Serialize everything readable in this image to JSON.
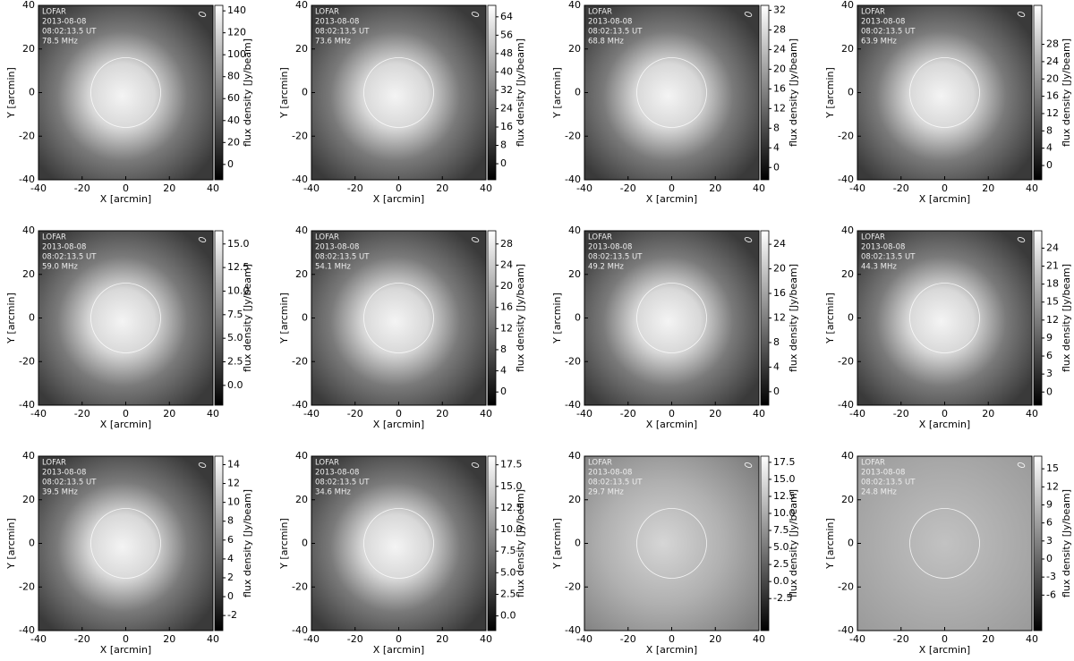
{
  "chart_data": [
    {
      "type": "image",
      "annotations": [
        "LOFAR",
        "2013-08-08",
        "08:02:13.5 UT",
        "78.5 MHz"
      ],
      "xlabel": "X [arcmin]",
      "ylabel": "Y [arcmin]",
      "xlim": [
        -40,
        40
      ],
      "ylim": [
        -40,
        40
      ],
      "xticks": [
        -40,
        -20,
        0,
        20,
        40
      ],
      "yticks": [
        -40,
        -20,
        0,
        20,
        40
      ],
      "colorbar": {
        "label": "flux density [Jy/beam]",
        "lim": [
          -14,
          145
        ],
        "ticks": [
          0,
          20,
          40,
          60,
          80,
          100,
          120,
          140
        ]
      }
    },
    {
      "type": "image",
      "annotations": [
        "LOFAR",
        "2013-08-08",
        "08:02:13.5 UT",
        "73.6 MHz"
      ],
      "xlabel": "X [arcmin]",
      "ylabel": "Y [arcmin]",
      "xlim": [
        -40,
        40
      ],
      "ylim": [
        -40,
        40
      ],
      "xticks": [
        -40,
        -20,
        0,
        20,
        40
      ],
      "yticks": [
        -40,
        -20,
        0,
        20,
        40
      ],
      "colorbar": {
        "label": "flux density [Jy/beam]",
        "lim": [
          -7,
          69
        ],
        "ticks": [
          0,
          8,
          16,
          24,
          32,
          40,
          48,
          56,
          64
        ]
      }
    },
    {
      "type": "image",
      "annotations": [
        "LOFAR",
        "2013-08-08",
        "08:02:13.5 UT",
        "68.8 MHz"
      ],
      "xlabel": "X [arcmin]",
      "ylabel": "Y [arcmin]",
      "xlim": [
        -40,
        40
      ],
      "ylim": [
        -40,
        40
      ],
      "xticks": [
        -40,
        -20,
        0,
        20,
        40
      ],
      "yticks": [
        -40,
        -20,
        0,
        20,
        40
      ],
      "colorbar": {
        "label": "flux density [Jy/beam]",
        "lim": [
          -2.5,
          33
        ],
        "ticks": [
          0,
          4,
          8,
          12,
          16,
          20,
          24,
          28,
          32
        ]
      }
    },
    {
      "type": "image",
      "annotations": [
        "LOFAR",
        "2013-08-08",
        "08:02:13.5 UT",
        "63.9 MHz"
      ],
      "xlabel": "X [arcmin]",
      "ylabel": "Y [arcmin]",
      "xlim": [
        -40,
        40
      ],
      "ylim": [
        -40,
        40
      ],
      "xticks": [
        -40,
        -20,
        0,
        20,
        40
      ],
      "yticks": [
        -40,
        -20,
        0,
        20,
        40
      ],
      "colorbar": {
        "label": "flux density [Jy/beam]",
        "lim": [
          -3.3,
          37
        ],
        "ticks": [
          0,
          4,
          8,
          12,
          16,
          20,
          24,
          28
        ]
      }
    },
    {
      "type": "image",
      "annotations": [
        "LOFAR",
        "2013-08-08",
        "08:02:13.5 UT",
        "59.0 MHz"
      ],
      "xlabel": "X [arcmin]",
      "ylabel": "Y [arcmin]",
      "xlim": [
        -40,
        40
      ],
      "ylim": [
        -40,
        40
      ],
      "xticks": [
        -40,
        -20,
        0,
        20,
        40
      ],
      "yticks": [
        -40,
        -20,
        0,
        20,
        40
      ],
      "colorbar": {
        "label": "flux density [Jy/beam]",
        "lim": [
          -2.1,
          16.4
        ],
        "ticks": [
          {
            "value": 0,
            "label": "0.0"
          },
          2.5,
          {
            "value": 5,
            "label": "5.0"
          },
          7.5,
          {
            "value": 10,
            "label": "10.0"
          },
          12.5,
          {
            "value": 15,
            "label": "15.0"
          }
        ]
      }
    },
    {
      "type": "image",
      "annotations": [
        "LOFAR",
        "2013-08-08",
        "08:02:13.5 UT",
        "54.1 MHz"
      ],
      "xlabel": "X [arcmin]",
      "ylabel": "Y [arcmin]",
      "xlim": [
        -40,
        40
      ],
      "ylim": [
        -40,
        40
      ],
      "xticks": [
        -40,
        -20,
        0,
        20,
        40
      ],
      "yticks": [
        -40,
        -20,
        0,
        20,
        40
      ],
      "colorbar": {
        "label": "flux density [Jy/beam]",
        "lim": [
          -2.5,
          30.5
        ],
        "ticks": [
          0,
          4,
          8,
          12,
          16,
          20,
          24,
          28
        ]
      }
    },
    {
      "type": "image",
      "annotations": [
        "LOFAR",
        "2013-08-08",
        "08:02:13.5 UT",
        "49.2 MHz"
      ],
      "xlabel": "X [arcmin]",
      "ylabel": "Y [arcmin]",
      "xlim": [
        -40,
        40
      ],
      "ylim": [
        -40,
        40
      ],
      "xticks": [
        -40,
        -20,
        0,
        20,
        40
      ],
      "yticks": [
        -40,
        -20,
        0,
        20,
        40
      ],
      "colorbar": {
        "label": "flux density [Jy/beam]",
        "lim": [
          -2.2,
          26.2
        ],
        "ticks": [
          0,
          4,
          8,
          12,
          16,
          20,
          24
        ]
      }
    },
    {
      "type": "image",
      "annotations": [
        "LOFAR",
        "2013-08-08",
        "08:02:13.5 UT",
        "44.3 MHz"
      ],
      "xlabel": "X [arcmin]",
      "ylabel": "Y [arcmin]",
      "xlim": [
        -40,
        40
      ],
      "ylim": [
        -40,
        40
      ],
      "xticks": [
        -40,
        -20,
        0,
        20,
        40
      ],
      "yticks": [
        -40,
        -20,
        0,
        20,
        40
      ],
      "colorbar": {
        "label": "flux density [Jy/beam]",
        "lim": [
          -2.2,
          26.9
        ],
        "ticks": [
          0,
          3,
          6,
          9,
          12,
          15,
          18,
          21,
          24
        ]
      }
    },
    {
      "type": "image",
      "annotations": [
        "LOFAR",
        "2013-08-08",
        "08:02:13.5 UT",
        "39.5 MHz"
      ],
      "xlabel": "X [arcmin]",
      "ylabel": "Y [arcmin]",
      "xlim": [
        -40,
        40
      ],
      "ylim": [
        -40,
        40
      ],
      "xticks": [
        -40,
        -20,
        0,
        20,
        40
      ],
      "yticks": [
        -40,
        -20,
        0,
        20,
        40
      ],
      "colorbar": {
        "label": "flux density [Jy/beam]",
        "lim": [
          -3.6,
          14.9
        ],
        "ticks": [
          -2,
          0,
          2,
          4,
          6,
          8,
          10,
          12,
          14
        ]
      }
    },
    {
      "type": "image",
      "annotations": [
        "LOFAR",
        "2013-08-08",
        "08:02:13.5 UT",
        "34.6 MHz"
      ],
      "xlabel": "X [arcmin]",
      "ylabel": "Y [arcmin]",
      "xlim": [
        -40,
        40
      ],
      "ylim": [
        -40,
        40
      ],
      "xticks": [
        -40,
        -20,
        0,
        20,
        40
      ],
      "yticks": [
        -40,
        -20,
        0,
        20,
        40
      ],
      "colorbar": {
        "label": "flux density [Jy/beam]",
        "lim": [
          -1.7,
          18.5
        ],
        "ticks": [
          {
            "value": 0,
            "label": "0.0"
          },
          2.5,
          {
            "value": 5,
            "label": "5.0"
          },
          7.5,
          {
            "value": 10,
            "label": "10.0"
          },
          12.5,
          {
            "value": 15,
            "label": "15.0"
          },
          17.5
        ]
      }
    },
    {
      "type": "image",
      "annotations": [
        "LOFAR",
        "2013-08-08",
        "08:02:13.5 UT",
        "29.7 MHz"
      ],
      "xlabel": "X [arcmin]",
      "ylabel": "Y [arcmin]",
      "xlim": [
        -40,
        40
      ],
      "ylim": [
        -40,
        40
      ],
      "xticks": [
        -40,
        -20,
        0,
        20,
        40
      ],
      "yticks": [
        -40,
        -20,
        0,
        20,
        40
      ],
      "colorbar": {
        "label": "flux density [Jy/beam]",
        "lim": [
          -7.2,
          18.4
        ],
        "ticks": [
          -2.5,
          {
            "value": 0,
            "label": "0.0"
          },
          2.5,
          {
            "value": 5,
            "label": "5.0"
          },
          7.5,
          {
            "value": 10,
            "label": "10.0"
          },
          12.5,
          {
            "value": 15,
            "label": "15.0"
          },
          17.5
        ]
      }
    },
    {
      "type": "image",
      "annotations": [
        "LOFAR",
        "2013-08-08",
        "08:02:13.5 UT",
        "24.8 MHz"
      ],
      "xlabel": "X [arcmin]",
      "ylabel": "Y [arcmin]",
      "xlim": [
        -40,
        40
      ],
      "ylim": [
        -40,
        40
      ],
      "xticks": [
        -40,
        -20,
        0,
        20,
        40
      ],
      "yticks": [
        -40,
        -20,
        0,
        20,
        40
      ],
      "colorbar": {
        "label": "flux density [Jy/beam]",
        "lim": [
          -11.9,
          17.1
        ],
        "ticks": [
          -6,
          -3,
          0,
          3,
          6,
          9,
          12,
          15
        ]
      }
    }
  ]
}
